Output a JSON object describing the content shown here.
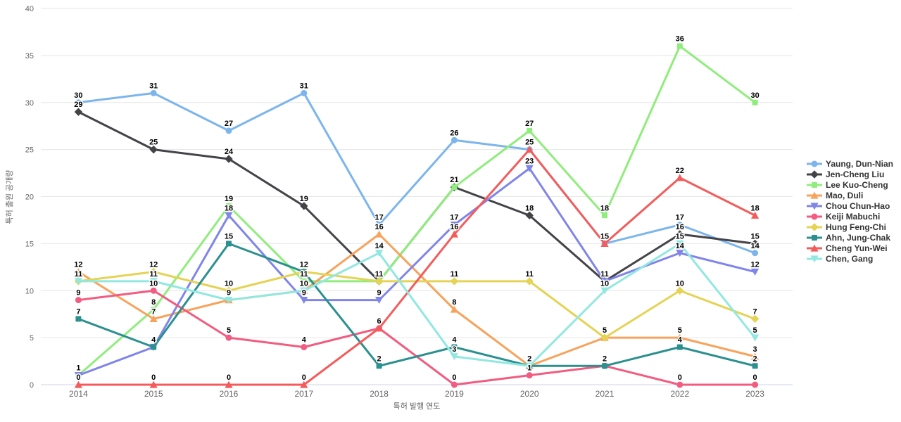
{
  "chart_data": {
    "type": "line",
    "title": "",
    "xlabel": "특허 발행 연도",
    "ylabel": "특허 출원 공개량",
    "x": [
      "2014",
      "2015",
      "2016",
      "2017",
      "2018",
      "2019",
      "2020",
      "2021",
      "2022",
      "2023"
    ],
    "ylim": [
      0,
      40
    ],
    "yticks": [
      0,
      5,
      10,
      15,
      20,
      25,
      30,
      35,
      40
    ],
    "grid": "horizontal",
    "legend_position": "right-middle",
    "data_labels": true,
    "series": [
      {
        "name": "Yaung, Dun-Nian",
        "color": "#7cb5ec",
        "marker": "circle",
        "values": [
          30,
          31,
          27,
          31,
          17,
          26,
          25,
          15,
          17,
          14
        ]
      },
      {
        "name": "Jen-Cheng Liu",
        "color": "#434348",
        "marker": "diamond",
        "values": [
          29,
          25,
          24,
          19,
          11,
          21,
          18,
          11,
          16,
          15
        ]
      },
      {
        "name": "Lee Kuo-Cheng",
        "color": "#90ed7d",
        "marker": "square",
        "values": [
          1,
          8,
          19,
          11,
          11,
          21,
          27,
          18,
          36,
          30
        ]
      },
      {
        "name": "Mao, Duli",
        "color": "#f7a35c",
        "marker": "triangle",
        "values": [
          12,
          7,
          9,
          10,
          16,
          8,
          2,
          5,
          5,
          3
        ]
      },
      {
        "name": "Chou Chun-Hao",
        "color": "#8085e9",
        "marker": "triangle-down",
        "values": [
          1,
          4,
          18,
          9,
          9,
          17,
          23,
          11,
          14,
          12
        ]
      },
      {
        "name": "Keiji Mabuchi",
        "color": "#f15c80",
        "marker": "circle",
        "values": [
          9,
          10,
          5,
          4,
          6,
          0,
          1,
          2,
          0,
          0
        ]
      },
      {
        "name": "Hung Feng-Chi",
        "color": "#e4d354",
        "marker": "diamond",
        "values": [
          11,
          12,
          10,
          12,
          11,
          11,
          11,
          5,
          10,
          7
        ]
      },
      {
        "name": "Ahn, Jung-Chak",
        "color": "#2b908f",
        "marker": "square",
        "values": [
          7,
          4,
          15,
          12,
          2,
          4,
          2,
          2,
          4,
          2
        ]
      },
      {
        "name": "Cheng Yun-Wei",
        "color": "#f45b5b",
        "marker": "triangle",
        "values": [
          0,
          0,
          0,
          0,
          6,
          16,
          25,
          15,
          22,
          18
        ]
      },
      {
        "name": "Chen, Gang",
        "color": "#91e8e1",
        "marker": "triangle-down",
        "values": [
          11,
          11,
          9,
          10,
          14,
          3,
          2,
          10,
          15,
          5
        ]
      }
    ]
  },
  "theme": {
    "background": "#ffffff",
    "grid_color": "#e6e6e6",
    "axis_line_color": "#ccd6eb",
    "tick_label_color": "#666666",
    "axis_title_color": "#666666",
    "legend_text_color": "#333333",
    "data_label_color": "#000000"
  }
}
